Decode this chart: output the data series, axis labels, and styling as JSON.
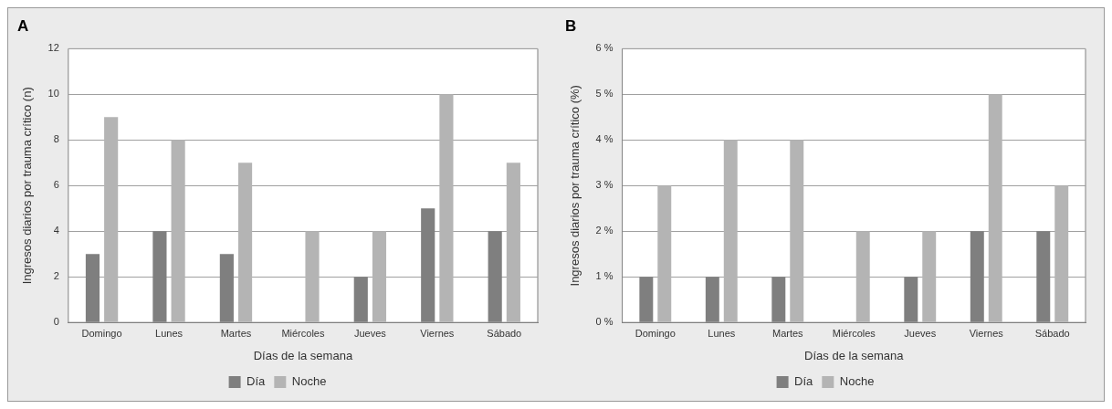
{
  "chart_data": [
    {
      "type": "bar",
      "title": "A",
      "xlabel": "Días de la semana",
      "ylabel": "Ingresos diarios por trauma crítico (n)",
      "categories": [
        "Domingo",
        "Lunes",
        "Martes",
        "Miércoles",
        "Jueves",
        "Viernes",
        "Sábado"
      ],
      "series": [
        {
          "name": "Día",
          "color": "#7f7f7f",
          "values": [
            3,
            4,
            3,
            0,
            2,
            5,
            4
          ]
        },
        {
          "name": "Noche",
          "color": "#b4b4b4",
          "values": [
            9,
            8,
            7,
            4,
            4,
            10,
            7
          ]
        }
      ],
      "ylim": [
        0,
        12
      ],
      "yticks": [
        0,
        2,
        4,
        6,
        8,
        10,
        12
      ],
      "grid": "y",
      "legend": "bottom"
    },
    {
      "type": "bar",
      "title": "B",
      "xlabel": "Días de la semana",
      "ylabel": "Ingresos diarios por trauma crítico (%)",
      "categories": [
        "Domingo",
        "Lunes",
        "Martes",
        "Miércoles",
        "Jueves",
        "Viernes",
        "Sábado"
      ],
      "series": [
        {
          "name": "Día",
          "color": "#7f7f7f",
          "values": [
            1,
            1,
            1,
            0,
            1,
            2,
            2
          ]
        },
        {
          "name": "Noche",
          "color": "#b4b4b4",
          "values": [
            3,
            4,
            4,
            2,
            2,
            5,
            3
          ]
        }
      ],
      "ylim": [
        0,
        6
      ],
      "yticks": [
        {
          "value": 0,
          "label": "0 %"
        },
        {
          "value": 1,
          "label": "1 %"
        },
        {
          "value": 2,
          "label": "2 %"
        },
        {
          "value": 3,
          "label": "3 %"
        },
        {
          "value": 4,
          "label": "4 %"
        },
        {
          "value": 5,
          "label": "5 %"
        },
        {
          "value": 6,
          "label": "6 %"
        }
      ],
      "grid": "y",
      "legend": "bottom"
    }
  ]
}
